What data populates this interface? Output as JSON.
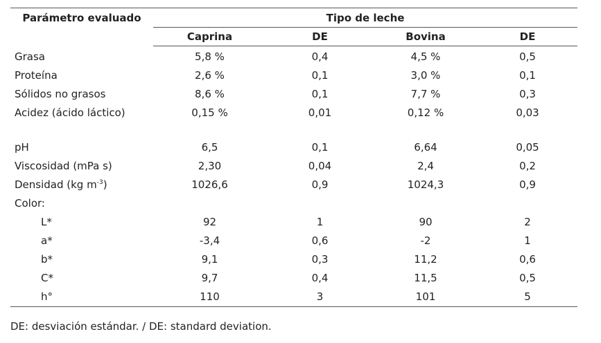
{
  "table": {
    "param_header": "Parámetro evaluado",
    "group_header": "Tipo de leche",
    "columns": [
      "Caprina",
      "DE",
      "Bovina",
      "DE"
    ],
    "rows": [
      {
        "param": "Grasa",
        "values": [
          "5,8 %",
          "0,4",
          "4,5 %",
          "0,5"
        ]
      },
      {
        "param": "Proteína",
        "values": [
          "2,6 %",
          "0,1",
          "3,0 %",
          "0,1"
        ]
      },
      {
        "param": "Sólidos no grasos",
        "values": [
          "8,6 %",
          "0,1",
          "7,7 %",
          "0,3"
        ]
      },
      {
        "param": "Acidez (ácido láctico)",
        "values": [
          "0,15 %",
          "0,01",
          "0,12 %",
          "0,03"
        ]
      },
      {
        "param": "pH",
        "values": [
          "6,5",
          "0,1",
          "6,64",
          "0,05"
        ]
      },
      {
        "param": "Viscosidad (mPa s)",
        "values": [
          "2,30",
          "0,04",
          "2,4",
          "0,2"
        ]
      },
      {
        "param": "Densidad (kg m",
        "param_sup": "-3",
        "param_suffix": ")",
        "values": [
          "1026,6",
          "0,9",
          "1024,3",
          "0,9"
        ]
      },
      {
        "param": "Color:",
        "values": [
          "",
          "",
          "",
          ""
        ]
      },
      {
        "param": "L*",
        "values": [
          "92",
          "1",
          "90",
          "2"
        ]
      },
      {
        "param": "a*",
        "values": [
          "-3,4",
          "0,6",
          "-2",
          "1"
        ]
      },
      {
        "param": "b*",
        "values": [
          "9,1",
          "0,3",
          "11,2",
          "0,6"
        ]
      },
      {
        "param": "C*",
        "values": [
          "9,7",
          "0,4",
          "11,5",
          "0,5"
        ]
      },
      {
        "param": "h°",
        "values": [
          "110",
          "3",
          "101",
          "5"
        ]
      }
    ]
  },
  "footnote": "DE: desviación estándar. / DE: standard deviation."
}
